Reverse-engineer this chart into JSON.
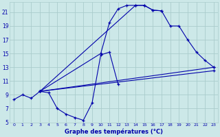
{
  "bg_color": "#cce8e8",
  "grid_color": "#aacccc",
  "line_color": "#0000aa",
  "x_label": "Graphe des températures (°C)",
  "xlim": [
    -0.5,
    23.5
  ],
  "ylim": [
    5,
    22.5
  ],
  "yticks": [
    5,
    7,
    9,
    11,
    13,
    15,
    17,
    19,
    21
  ],
  "xticks": [
    0,
    1,
    2,
    3,
    4,
    5,
    6,
    7,
    8,
    9,
    10,
    11,
    12,
    13,
    14,
    15,
    16,
    17,
    18,
    19,
    20,
    21,
    22,
    23
  ],
  "line1_x": [
    0,
    1,
    2,
    3,
    4,
    5,
    6,
    7,
    8,
    9,
    10,
    11,
    12
  ],
  "line1_y": [
    8.3,
    9.0,
    8.5,
    9.5,
    9.3,
    7.0,
    6.2,
    5.7,
    5.3,
    7.8,
    14.8,
    15.2,
    10.5
  ],
  "line2_x": [
    3,
    10,
    11,
    12,
    13,
    14,
    15,
    16,
    17
  ],
  "line2_y": [
    9.5,
    15.0,
    19.5,
    21.5,
    22.0,
    22.0,
    22.0,
    21.3,
    21.2
  ],
  "line3_x": [
    3,
    14,
    15,
    16,
    17,
    18,
    19,
    20,
    21,
    22,
    23
  ],
  "line3_y": [
    9.5,
    22.0,
    22.0,
    21.3,
    21.2,
    19.0,
    19.0,
    17.0,
    15.2,
    14.0,
    13.0
  ],
  "line4_x": [
    3,
    23
  ],
  "line4_y": [
    9.5,
    13.0
  ],
  "line5_x": [
    3,
    23
  ],
  "line5_y": [
    9.5,
    12.5
  ]
}
